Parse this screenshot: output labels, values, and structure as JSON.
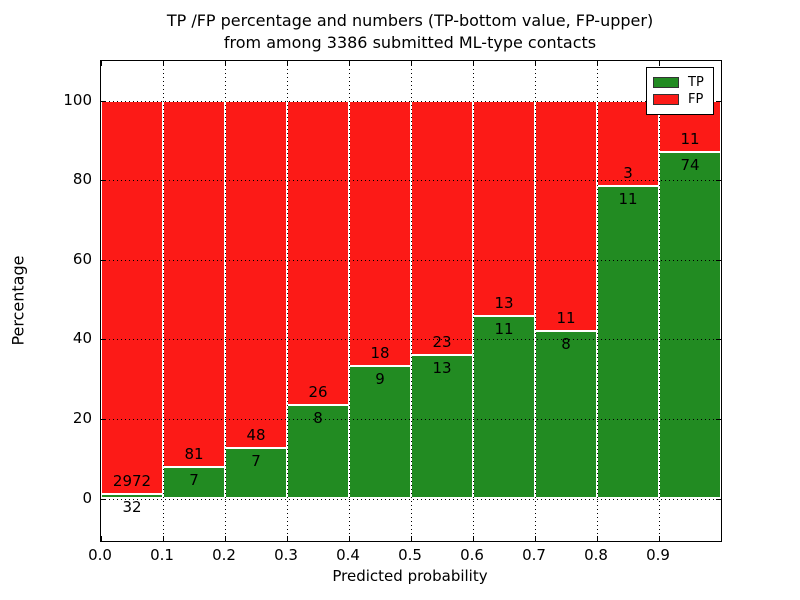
{
  "title": {
    "line1": "TP /FP percentage and numbers (TP-bottom value, FP-upper)",
    "line2": "from among 3386 submitted ML-type contacts"
  },
  "axes": {
    "xlabel": "Predicted probability",
    "ylabel": "Percentage",
    "x_tick_labels": [
      "0.0",
      "0.1",
      "0.2",
      "0.3",
      "0.4",
      "0.5",
      "0.6",
      "0.7",
      "0.8",
      "0.9"
    ],
    "y_tick_labels": [
      "0",
      "20",
      "40",
      "60",
      "80",
      "100"
    ],
    "y_tick_values": [
      0,
      20,
      40,
      60,
      80,
      100
    ],
    "xlim": [
      0.0,
      1.0
    ],
    "ylim": [
      -10.7,
      110.0
    ],
    "grid": "dotted"
  },
  "legend": {
    "position": "upper right",
    "items": [
      {
        "label": "TP",
        "color": "#228b22"
      },
      {
        "label": "FP",
        "color": "#fc1a17"
      }
    ]
  },
  "colors": {
    "tp": "#228b22",
    "fp": "#fc1a17",
    "bar_edge": "#ffffff",
    "axis": "#000000",
    "background": "#ffffff"
  },
  "chart_data": {
    "type": "bar",
    "stacked": true,
    "normalized": "each bin scaled to 100%",
    "title": "TP /FP percentage and numbers (TP-bottom value, FP-upper) from among 3386 submitted ML-type contacts",
    "xlabel": "Predicted probability",
    "ylabel": "Percentage",
    "total_contacts": 3386,
    "bin_width": 0.1,
    "categories": [
      "0.0-0.1",
      "0.1-0.2",
      "0.2-0.3",
      "0.3-0.4",
      "0.4-0.5",
      "0.5-0.6",
      "0.6-0.7",
      "0.7-0.8",
      "0.8-0.9",
      "0.9-1.0"
    ],
    "series": [
      {
        "name": "TP",
        "counts": [
          32,
          7,
          7,
          8,
          9,
          13,
          11,
          8,
          11,
          74
        ]
      },
      {
        "name": "FP",
        "counts": [
          2972,
          81,
          48,
          26,
          18,
          23,
          13,
          11,
          3,
          11
        ]
      }
    ],
    "tp_percent": [
      1.07,
      7.95,
      12.73,
      23.53,
      33.33,
      36.11,
      45.83,
      42.11,
      78.57,
      87.06
    ]
  }
}
